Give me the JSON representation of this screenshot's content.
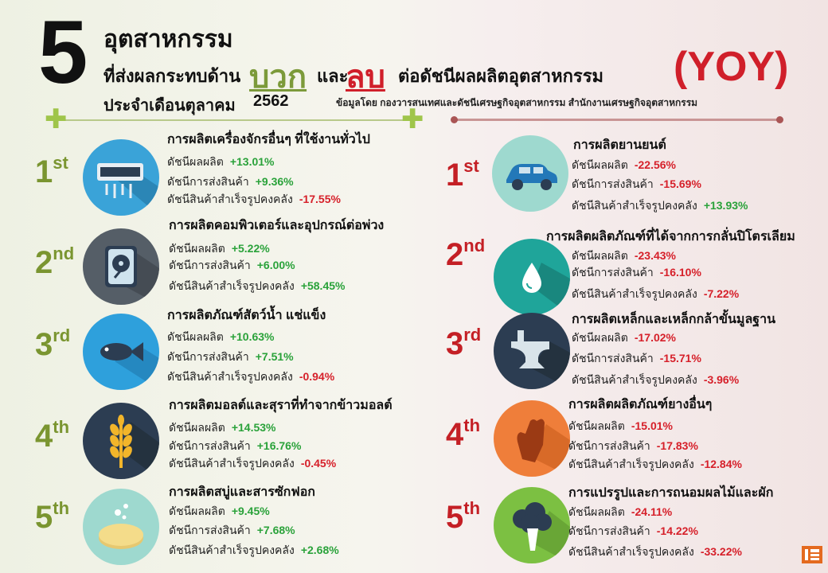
{
  "header": {
    "number": "5",
    "line1": "อุตสาหกรรม",
    "line2_prefix": "ที่ส่งผลกระทบด้าน",
    "positive": "บวก",
    "and": "และ",
    "negative": "ลบ",
    "line2_suffix": "ต่อดัชนีผลผลิตอุตสาหกรรม",
    "line3_prefix": "ประจำเดือนตุลาคม",
    "line3_year": "2562",
    "yoy": "(YOY)",
    "source": "ข้อมูลโดย กองวารสนเทศและดัชนีเศรษฐกิจอุตสาหกรรม สำนักงานเศรษฐกิจอุตสาหกรรม"
  },
  "labels": {
    "production_index": "ดัชนีผลผลิต",
    "shipment_index": "ดัชนีการส่งสินค้า",
    "inventory_index": "ดัชนีสินค้าสำเร็จรูปคงคลัง"
  },
  "colors": {
    "positive_green": "#7a9530",
    "negative_red": "#c41f25",
    "value_green": "#2aa23a",
    "value_red": "#d6202a"
  },
  "positive": [
    {
      "rank_num": "1",
      "rank_suffix": "st",
      "title": "การผลิตเครื่องจักรอื่นๆ ที่ใช้งานทั่วไป",
      "production": "+13.01%",
      "shipment": "+9.36%",
      "inventory": "-17.55%",
      "icon": "air-conditioner-icon",
      "icon_bg": "#3aa3d8"
    },
    {
      "rank_num": "2",
      "rank_suffix": "nd",
      "title": "การผลิตคอมพิวเตอร์และอุปกรณ์ต่อพ่วง",
      "production": "+5.22%",
      "shipment": "+6.00%",
      "inventory": "+58.45%",
      "icon": "hard-disk-icon",
      "icon_bg": "#555e67"
    },
    {
      "rank_num": "3",
      "rank_suffix": "rd",
      "title": "การผลิตภัณฑ์สัตว์น้ำ แช่แข็ง",
      "production": "+10.63%",
      "shipment": "+7.51%",
      "inventory": "-0.94%",
      "icon": "fish-icon",
      "icon_bg": "#2ea0dc"
    },
    {
      "rank_num": "4",
      "rank_suffix": "th",
      "title": "การผลิตมอลต์และสุราที่ทำจากข้าวมอลต์",
      "production": "+14.53%",
      "shipment": "+16.76%",
      "inventory": "-0.45%",
      "icon": "wheat-icon",
      "icon_bg": "#2c3d52"
    },
    {
      "rank_num": "5",
      "rank_suffix": "th",
      "title": "การผลิตสบู่และสารซักฟอก",
      "production": "+9.45%",
      "shipment": "+7.68%",
      "inventory": "+2.68%",
      "icon": "soap-icon",
      "icon_bg": "#9ed9cf"
    }
  ],
  "negative": [
    {
      "rank_num": "1",
      "rank_suffix": "st",
      "title": "การผลิตยานยนต์",
      "production": "-22.56%",
      "shipment": "-15.69%",
      "inventory": "+13.93%",
      "icon": "car-icon",
      "icon_bg": "#9ed9cf"
    },
    {
      "rank_num": "2",
      "rank_suffix": "nd",
      "title": "การผลิตผลิตภัณฑ์ที่ได้จากการกลั่นปิโตรเลียม",
      "production": "-23.43%",
      "shipment": "-16.10%",
      "inventory": "-7.22%",
      "icon": "oil-drop-icon",
      "icon_bg": "#1fa59a"
    },
    {
      "rank_num": "3",
      "rank_suffix": "rd",
      "title": "การผลิตเหล็กและเหล็กกล้าขั้นมูลฐาน",
      "production": "-17.02%",
      "shipment": "-15.71%",
      "inventory": "-3.96%",
      "icon": "anvil-icon",
      "icon_bg": "#2c3d52"
    },
    {
      "rank_num": "4",
      "rank_suffix": "th",
      "title": "การผลิตผลิตภัณฑ์ยางอื่นๆ",
      "production": "-15.01%",
      "shipment": "-17.83%",
      "inventory": "-12.84%",
      "icon": "rubber-glove-icon",
      "icon_bg": "#ef7e3a"
    },
    {
      "rank_num": "5",
      "rank_suffix": "th",
      "title": "การแปรรูปและการถนอมผลไม้และผัก",
      "production": "-24.11%",
      "shipment": "-14.22%",
      "inventory": "-33.22%",
      "icon": "broccoli-icon",
      "icon_bg": "#7cc042"
    }
  ]
}
